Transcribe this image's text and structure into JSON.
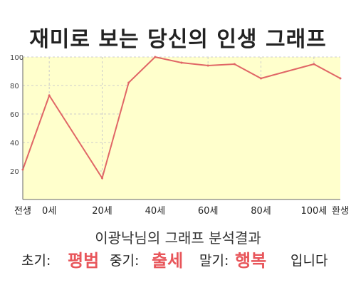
{
  "title": "재미로 보는 당신의 인생 그래프",
  "summary": "이광낙님의 그래프 분석결과",
  "results": {
    "early_label": "초기:",
    "early_value": "평범",
    "mid_label": "중기:",
    "mid_value": "출세",
    "late_label": "말기:",
    "late_value": "행복",
    "tail": "입니다"
  },
  "colors": {
    "line": "#e06666",
    "fill": "#ffffcc",
    "highlight": "#e8555a",
    "grid": "#cccccc"
  },
  "chart_data": {
    "type": "area",
    "x_tick_labels": [
      "전생",
      "0세",
      "20세",
      "40세",
      "60세",
      "80세",
      "100세",
      "환생"
    ],
    "y_ticks": [
      20,
      40,
      60,
      80,
      100
    ],
    "ylim": [
      0,
      100
    ],
    "grid": true,
    "points": [
      {
        "x": "전생",
        "y": 21
      },
      {
        "x": "0세",
        "y": 73
      },
      {
        "x": "20세",
        "y": 15
      },
      {
        "x": "30세",
        "y": 82
      },
      {
        "x": "40세",
        "y": 100
      },
      {
        "x": "50세",
        "y": 96
      },
      {
        "x": "60세",
        "y": 94
      },
      {
        "x": "70세",
        "y": 95
      },
      {
        "x": "80세",
        "y": 85
      },
      {
        "x": "100세",
        "y": 95
      },
      {
        "x": "환생",
        "y": 85
      }
    ]
  }
}
